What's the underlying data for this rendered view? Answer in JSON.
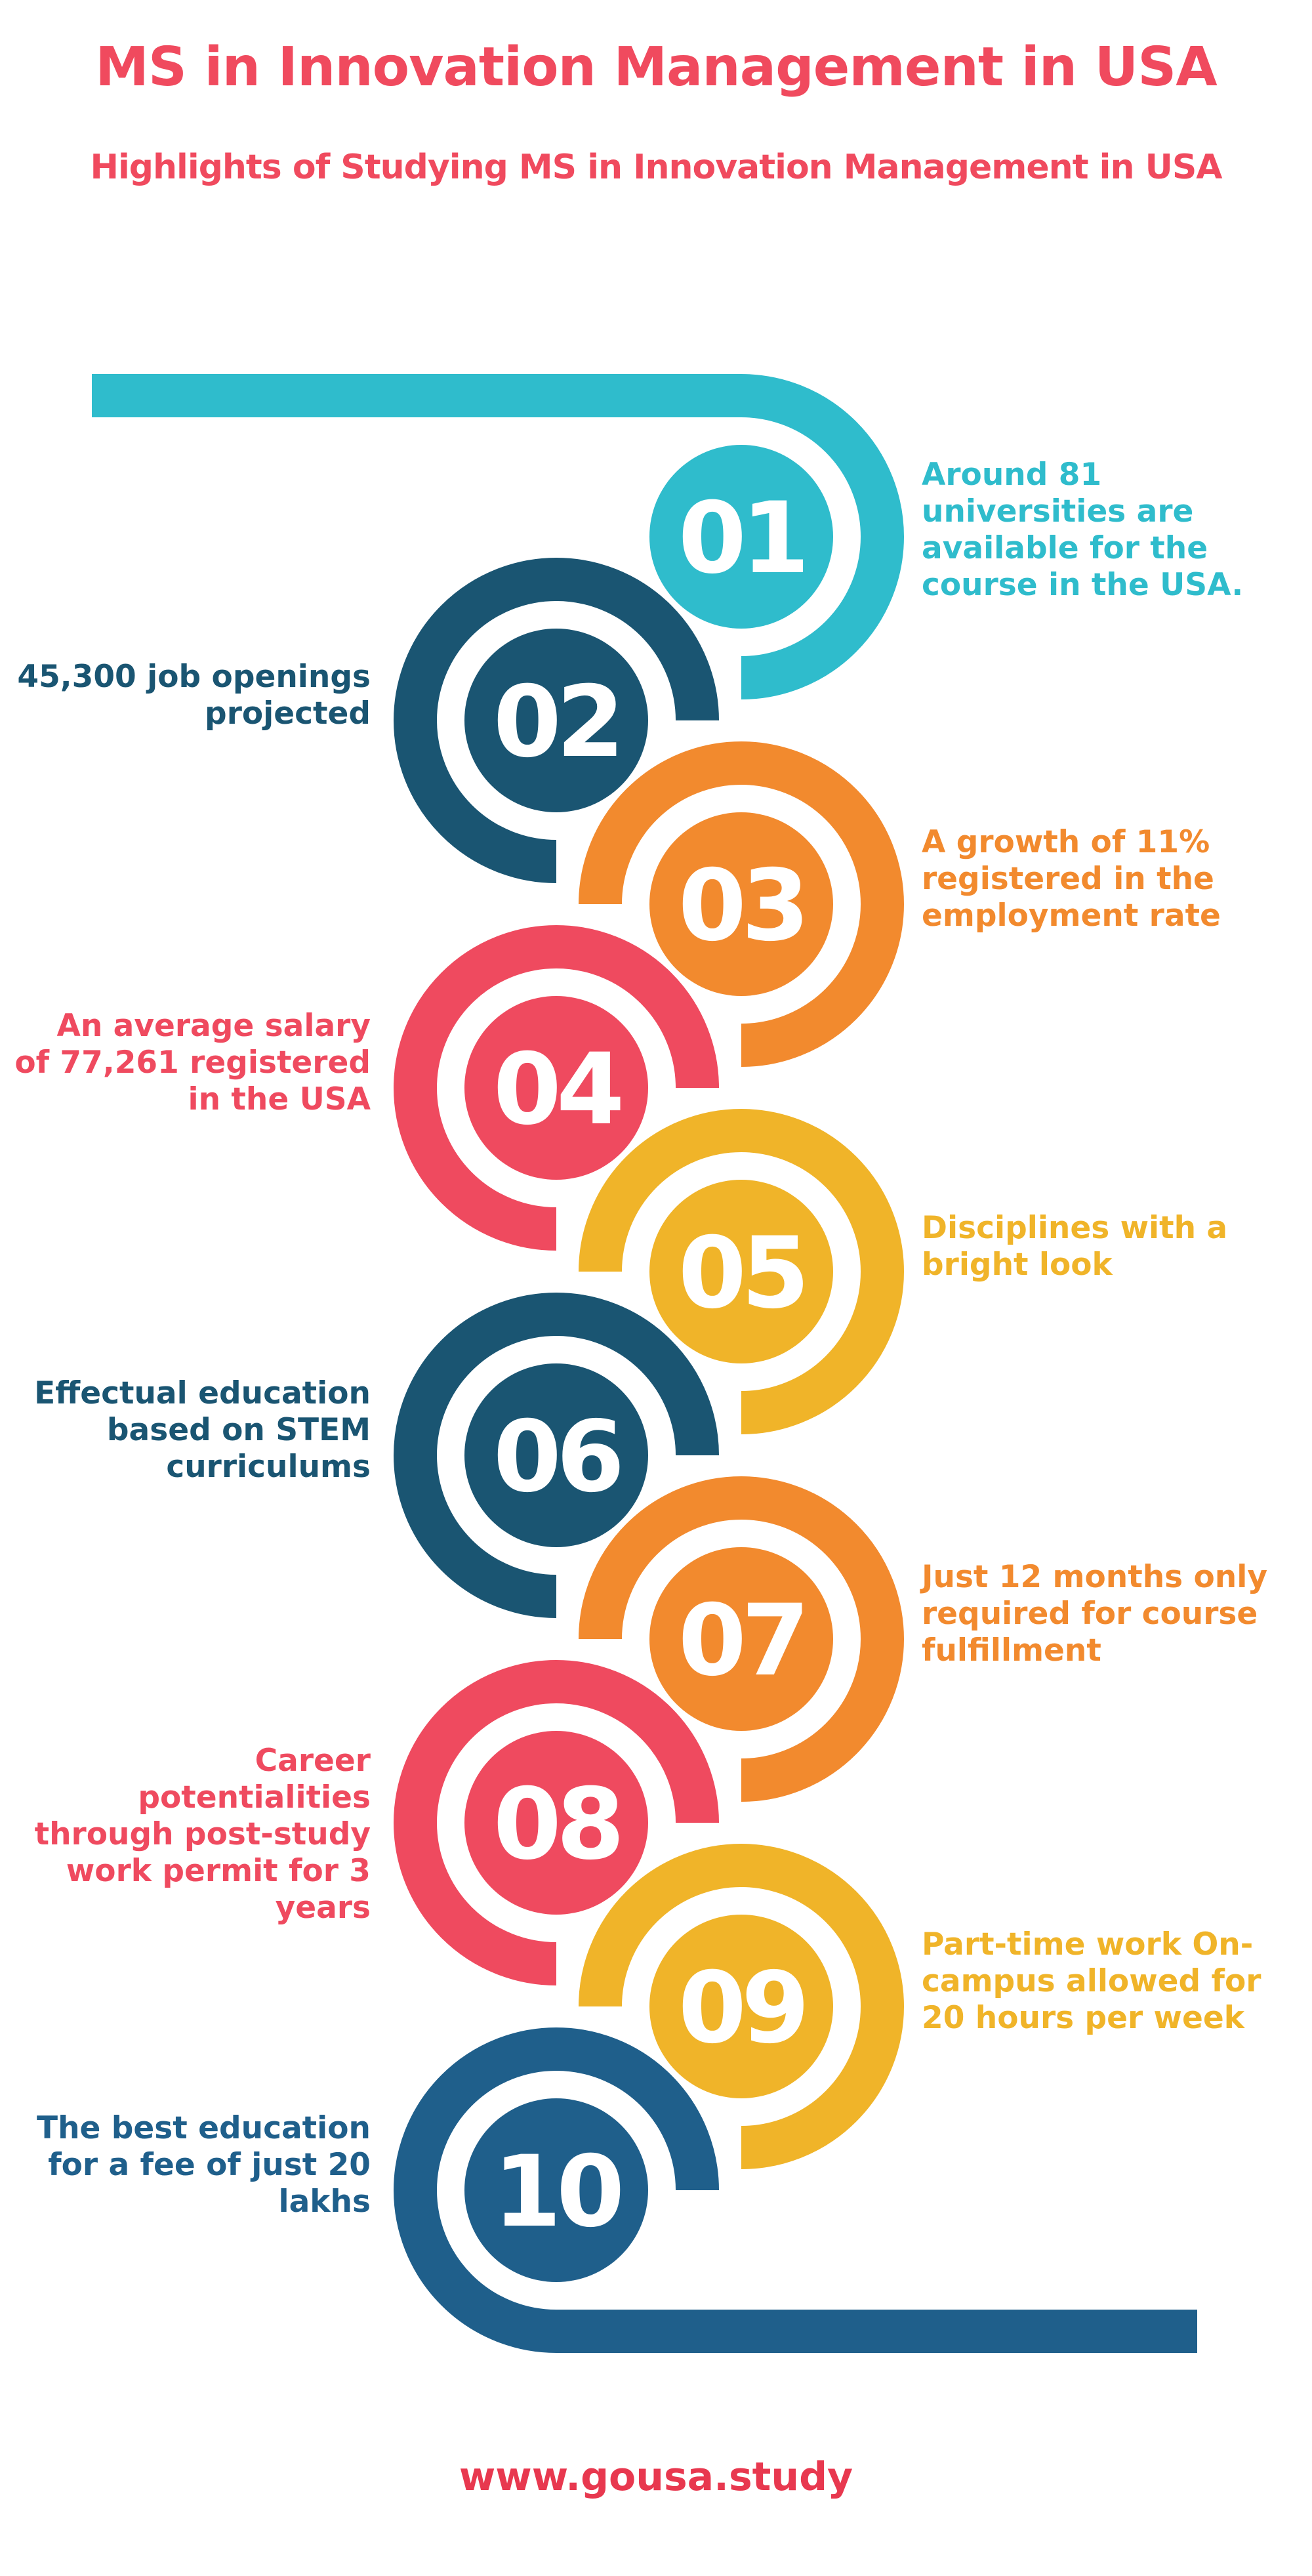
{
  "header": {
    "title": "MS in Innovation Management in USA",
    "subtitle": "Highlights of Studying MS in Innovation Management in USA"
  },
  "highlights": [
    {
      "number": "01",
      "side": "right",
      "color": "#2fbccc",
      "text": "Around 81 universities are available for the course in the USA."
    },
    {
      "number": "02",
      "side": "left",
      "color": "#1a5572",
      "text": "45,300 job openings projected"
    },
    {
      "number": "03",
      "side": "right",
      "color": "#f28a2e",
      "text": "A growth of 11% registered in the employment rate"
    },
    {
      "number": "04",
      "side": "left",
      "color": "#ef4a5f",
      "text": "An average salary of 77,261 registered in the USA"
    },
    {
      "number": "05",
      "side": "right",
      "color": "#f0b429",
      "text": "Disciplines with a bright look"
    },
    {
      "number": "06",
      "side": "left",
      "color": "#1a5572",
      "text": "Effectual education based on STEM curriculums"
    },
    {
      "number": "07",
      "side": "right",
      "color": "#f28a2e",
      "text": "Just 12 months only required for course fulfillment"
    },
    {
      "number": "08",
      "side": "left",
      "color": "#ef4a5f",
      "text": "Career potentialities through post-study work permit for 3 years"
    },
    {
      "number": "09",
      "side": "right",
      "color": "#f0b429",
      "text": "Part-time work On-campus allowed for 20 hours per week"
    },
    {
      "number": "10",
      "side": "left",
      "color": "#1f5f8b",
      "text": "The best education for a fee of just 20 lakhs"
    }
  ],
  "footer": {
    "website": "www.gousa.study"
  }
}
